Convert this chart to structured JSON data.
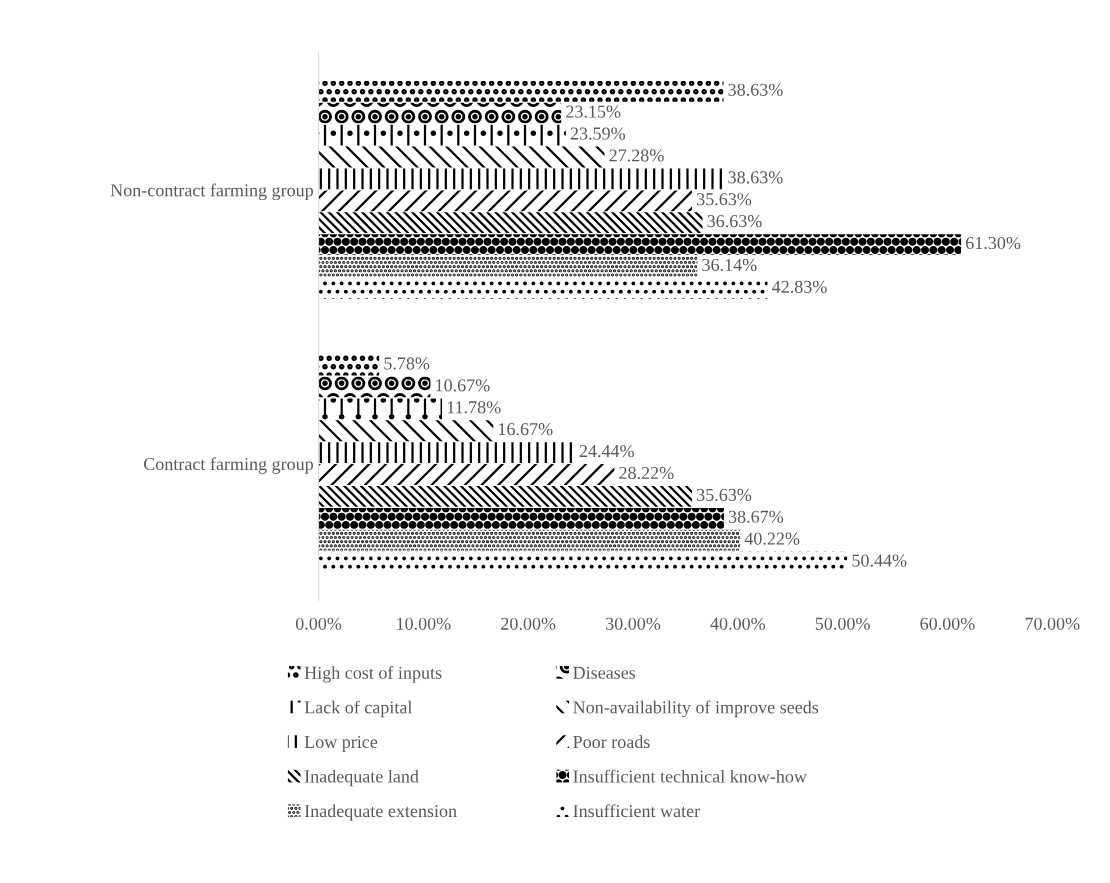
{
  "chart_data": {
    "type": "bar",
    "orientation": "horizontal",
    "categories": [
      "Non-contract farming group",
      "Contract farming group"
    ],
    "series": [
      {
        "name": "High cost of inputs",
        "color": "#000000",
        "values": [
          38.63,
          5.78
        ],
        "value_labels": [
          "38.63%",
          "5.78%"
        ]
      },
      {
        "name": "Diseases",
        "color": "#000000",
        "values": [
          23.15,
          10.67
        ],
        "value_labels": [
          "23.15%",
          "10.67%"
        ]
      },
      {
        "name": "Lack of capital",
        "color": "#000000",
        "values": [
          23.59,
          11.78
        ],
        "value_labels": [
          "23.59%",
          "11.78%"
        ]
      },
      {
        "name": "Non-availability of improve seeds",
        "color": "#000000",
        "values": [
          27.28,
          16.67
        ],
        "value_labels": [
          "27.28%",
          "16.67%"
        ]
      },
      {
        "name": "Low price",
        "color": "#000000",
        "values": [
          38.63,
          24.44
        ],
        "value_labels": [
          "38.63%",
          "24.44%"
        ]
      },
      {
        "name": "Poor roads",
        "color": "#000000",
        "values": [
          35.63,
          28.22
        ],
        "value_labels": [
          "35.63%",
          "28.22%"
        ]
      },
      {
        "name": "Inadequate land",
        "color": "#000000",
        "values": [
          36.63,
          35.63
        ],
        "value_labels": [
          "36.63%",
          "35.63%"
        ]
      },
      {
        "name": "Insufficient technical know-how",
        "color": "#000000",
        "values": [
          61.3,
          38.67
        ],
        "value_labels": [
          "61.30%",
          "38.67%"
        ]
      },
      {
        "name": "Inadequate extension",
        "color": "#000000",
        "values": [
          36.14,
          40.22
        ],
        "value_labels": [
          "36.14%",
          "40.22%"
        ]
      },
      {
        "name": "Insufficient water",
        "color": "#000000",
        "values": [
          42.83,
          50.44
        ],
        "value_labels": [
          "42.83%",
          "50.44%"
        ]
      }
    ],
    "xlim": [
      0,
      70
    ],
    "xticks": [
      {
        "value": 0,
        "label": "0.00%"
      },
      {
        "value": 10,
        "label": "10.00%"
      },
      {
        "value": 20,
        "label": "20.00%"
      },
      {
        "value": 30,
        "label": "30.00%"
      },
      {
        "value": 40,
        "label": "40.00%"
      },
      {
        "value": 50,
        "label": "50.00%"
      },
      {
        "value": 60,
        "label": "60.00%"
      },
      {
        "value": 70,
        "label": "70.00%"
      }
    ],
    "grid": false,
    "legend": "bottom"
  }
}
